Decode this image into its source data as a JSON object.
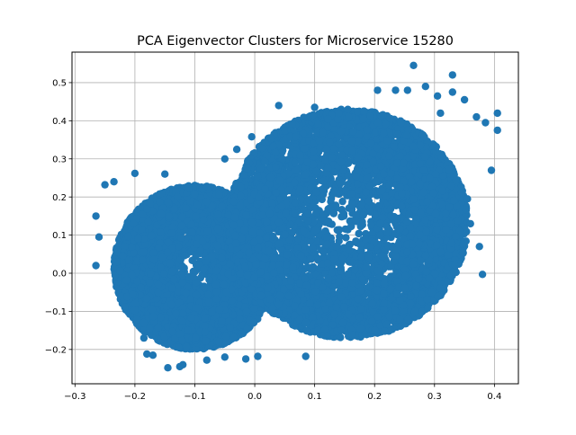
{
  "chart_data": {
    "type": "scatter",
    "title": "PCA Eigenvector Clusters for Microservice 15280",
    "xlabel": "",
    "ylabel": "",
    "xlim": [
      -0.305,
      0.44
    ],
    "ylim": [
      -0.29,
      0.58
    ],
    "xticks": [
      -0.3,
      -0.2,
      -0.1,
      0.0,
      0.1,
      0.2,
      0.3,
      0.4
    ],
    "xtick_labels": [
      "−0.3",
      "−0.2",
      "−0.1",
      "0.0",
      "0.1",
      "0.2",
      "0.3",
      "0.4"
    ],
    "yticks": [
      -0.2,
      -0.1,
      0.0,
      0.1,
      0.2,
      0.3,
      0.4,
      0.5
    ],
    "ytick_labels": [
      "−0.2",
      "−0.1",
      "0.0",
      "0.1",
      "0.2",
      "0.3",
      "0.4",
      "0.5"
    ],
    "grid": true,
    "marker_color": "#1f77b4",
    "series": [
      {
        "clusters": [
          {
            "shape": "ellipse",
            "center": [
              -0.1,
              0.015
            ],
            "radii": [
              0.135,
              0.215
            ],
            "count": 5000
          },
          {
            "shape": "ellipse",
            "center": [
              0.155,
              0.13
            ],
            "radii": [
              0.2,
              0.3
            ],
            "count": 8500
          }
        ],
        "outliers": [
          [
            0.265,
            0.545
          ],
          [
            0.33,
            0.52
          ],
          [
            0.405,
            0.42
          ],
          [
            0.405,
            0.375
          ],
          [
            0.395,
            0.27
          ],
          [
            0.38,
            -0.003
          ],
          [
            0.375,
            0.07
          ],
          [
            0.36,
            0.13
          ],
          [
            0.355,
            0.195
          ],
          [
            0.33,
            0.475
          ],
          [
            0.35,
            0.455
          ],
          [
            0.37,
            0.41
          ],
          [
            0.385,
            0.395
          ],
          [
            -0.265,
            0.15
          ],
          [
            -0.265,
            0.02
          ],
          [
            -0.26,
            0.095
          ],
          [
            -0.25,
            0.232
          ],
          [
            -0.235,
            0.24
          ],
          [
            -0.2,
            -0.097
          ],
          [
            -0.185,
            -0.13
          ],
          [
            -0.185,
            -0.17
          ],
          [
            -0.18,
            -0.212
          ],
          [
            -0.17,
            -0.215
          ],
          [
            -0.145,
            -0.248
          ],
          [
            -0.125,
            -0.245
          ],
          [
            -0.12,
            -0.24
          ],
          [
            -0.08,
            -0.228
          ],
          [
            -0.05,
            -0.22
          ],
          [
            -0.015,
            -0.225
          ],
          [
            0.005,
            -0.218
          ],
          [
            0.085,
            -0.218
          ],
          [
            -0.2,
            0.262
          ],
          [
            -0.15,
            0.26
          ],
          [
            -0.08,
            0.228
          ],
          [
            -0.05,
            0.3
          ],
          [
            -0.03,
            0.325
          ],
          [
            -0.005,
            0.358
          ],
          [
            0.04,
            0.44
          ],
          [
            0.1,
            0.435
          ],
          [
            0.14,
            0.42
          ],
          [
            0.205,
            0.48
          ],
          [
            0.235,
            0.48
          ],
          [
            0.255,
            0.48
          ],
          [
            0.285,
            0.49
          ],
          [
            0.305,
            0.465
          ],
          [
            0.31,
            0.42
          ]
        ]
      }
    ]
  }
}
